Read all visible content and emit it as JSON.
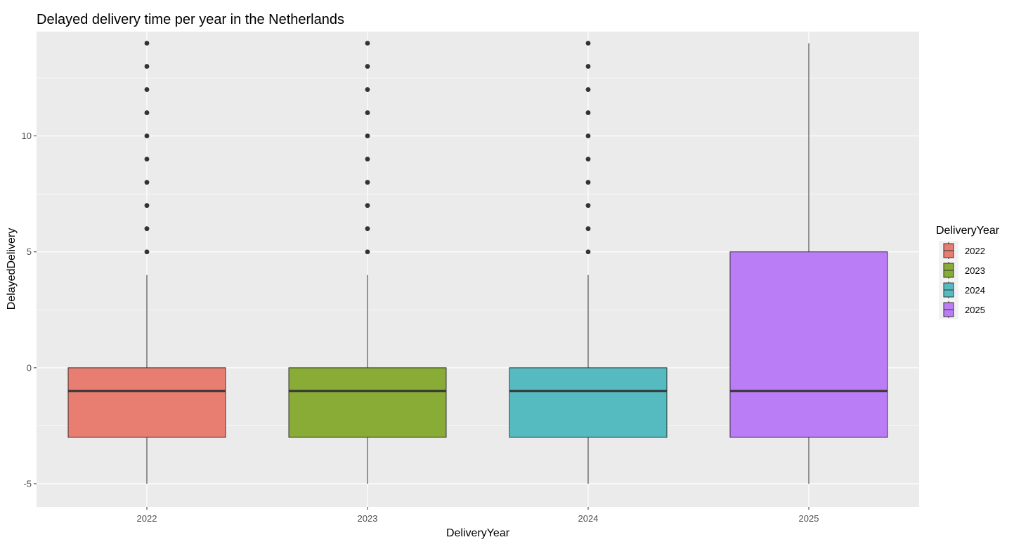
{
  "chart_data": {
    "type": "boxplot",
    "title": "Delayed delivery time per year in the Netherlands",
    "xlabel": "DeliveryYear",
    "ylabel": "DelayedDelivery",
    "ylim": [
      -6,
      14.5
    ],
    "y_ticks": [
      -5,
      0,
      5,
      10
    ],
    "y_minor_ticks": [
      -2.5,
      2.5,
      7.5,
      12.5
    ],
    "grid": true,
    "legend": {
      "title": "DeliveryYear",
      "placement": "right"
    },
    "categories": [
      "2022",
      "2023",
      "2024",
      "2025"
    ],
    "series": [
      {
        "name": "2022",
        "color": "#E87D72",
        "min": -5,
        "q1": -3,
        "median": -1,
        "q3": 0,
        "max": 4,
        "outliers": [
          5,
          6,
          7,
          8,
          9,
          10,
          11,
          12,
          13,
          14
        ]
      },
      {
        "name": "2023",
        "color": "#88AC35",
        "min": -5,
        "q1": -3,
        "median": -1,
        "q3": 0,
        "max": 4,
        "outliers": [
          5,
          6,
          7,
          8,
          9,
          10,
          11,
          12,
          13,
          14
        ]
      },
      {
        "name": "2024",
        "color": "#56BBC1",
        "min": -5,
        "q1": -3,
        "median": -1,
        "q3": 0,
        "max": 4,
        "outliers": [
          5,
          6,
          7,
          8,
          9,
          10,
          11,
          12,
          13,
          14
        ]
      },
      {
        "name": "2025",
        "color": "#BB7DF5",
        "min": -5,
        "q1": -3,
        "median": -1,
        "q3": 5,
        "max": 14,
        "outliers": []
      }
    ]
  }
}
